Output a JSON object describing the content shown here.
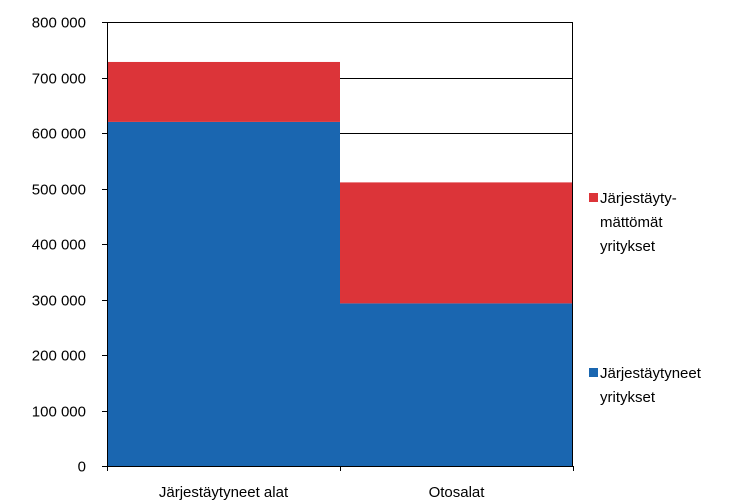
{
  "chart_data": {
    "type": "bar",
    "stacked": true,
    "categories": [
      "Järjestäytyneet alat",
      "Otosalat"
    ],
    "series": [
      {
        "name": "Järjestäytyneet yritykset",
        "name_lines": [
          "Järjestäytyneet",
          "yritykset"
        ],
        "color": "#1a66b0",
        "values": [
          620000,
          293000
        ]
      },
      {
        "name": "Järjestäytymättömät yritykset",
        "name_lines": [
          "Järjestäyty-",
          "mättömät",
          "yritykset"
        ],
        "color": "#dc3439",
        "values": [
          108000,
          218000
        ]
      }
    ],
    "ylim": [
      0,
      800000
    ],
    "yticks": [
      0,
      100000,
      200000,
      300000,
      400000,
      500000,
      600000,
      700000,
      800000
    ],
    "ytick_labels": [
      "0",
      "100 000",
      "200 000",
      "300 000",
      "400 000",
      "500 000",
      "600 000",
      "700 000",
      "800 000"
    ],
    "grid": true,
    "legend_position": "right",
    "xlabel": "",
    "ylabel": ""
  }
}
